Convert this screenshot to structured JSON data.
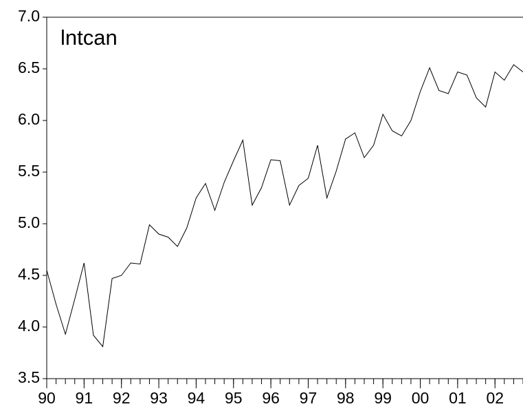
{
  "chart_data": {
    "type": "line",
    "title": "lntcan",
    "x": [
      1990,
      1990.25,
      1990.5,
      1990.75,
      1991,
      1991.25,
      1991.5,
      1991.75,
      1992,
      1992.25,
      1992.5,
      1992.75,
      1993,
      1993.25,
      1993.5,
      1993.75,
      1994,
      1994.25,
      1994.5,
      1994.75,
      1995,
      1995.25,
      1995.5,
      1995.75,
      1996,
      1996.25,
      1996.5,
      1996.75,
      1997,
      1997.25,
      1997.5,
      1997.75,
      1998,
      1998.25,
      1998.5,
      1998.75,
      1999,
      1999.25,
      1999.5,
      1999.75,
      2000,
      2000.25,
      2000.5,
      2000.75,
      2001,
      2001.25,
      2001.5,
      2001.75,
      2002,
      2002.25,
      2002.5,
      2002.75
    ],
    "series": [
      {
        "name": "lntcan",
        "color": "#000000",
        "values": [
          4.55,
          4.22,
          3.93,
          4.27,
          4.62,
          3.92,
          3.81,
          4.47,
          4.5,
          4.62,
          4.61,
          4.99,
          4.9,
          4.87,
          4.78,
          4.96,
          5.25,
          5.39,
          5.13,
          5.4,
          5.61,
          5.81,
          5.18,
          5.35,
          5.62,
          5.61,
          5.18,
          5.37,
          5.44,
          5.76,
          5.25,
          5.51,
          5.82,
          5.88,
          5.64,
          5.76,
          6.06,
          5.9,
          5.85,
          6.0,
          6.28,
          6.51,
          6.29,
          6.26,
          6.47,
          6.44,
          6.22,
          6.13,
          6.47,
          6.39,
          6.54,
          6.47
        ]
      }
    ],
    "xlim": [
      1990,
      2002.75
    ],
    "xticks": [
      {
        "value": 1990,
        "label": "90"
      },
      {
        "value": 1991,
        "label": "91"
      },
      {
        "value": 1992,
        "label": "92"
      },
      {
        "value": 1993,
        "label": "93"
      },
      {
        "value": 1994,
        "label": "94"
      },
      {
        "value": 1995,
        "label": "95"
      },
      {
        "value": 1996,
        "label": "96"
      },
      {
        "value": 1997,
        "label": "97"
      },
      {
        "value": 1998,
        "label": "98"
      },
      {
        "value": 1999,
        "label": "99"
      },
      {
        "value": 2000,
        "label": "00"
      },
      {
        "value": 2001,
        "label": "01"
      },
      {
        "value": 2002,
        "label": "02"
      }
    ],
    "ylim": [
      3.5,
      7.0
    ],
    "yticks": [
      3.5,
      {
        "value": 4.0,
        "label": "4.0"
      },
      4.5,
      {
        "value": 5.0,
        "label": "5.0"
      },
      5.5,
      {
        "value": 6.0,
        "label": "6.0"
      },
      6.5,
      {
        "value": 7.0,
        "label": "7.0"
      }
    ],
    "grid": false
  }
}
